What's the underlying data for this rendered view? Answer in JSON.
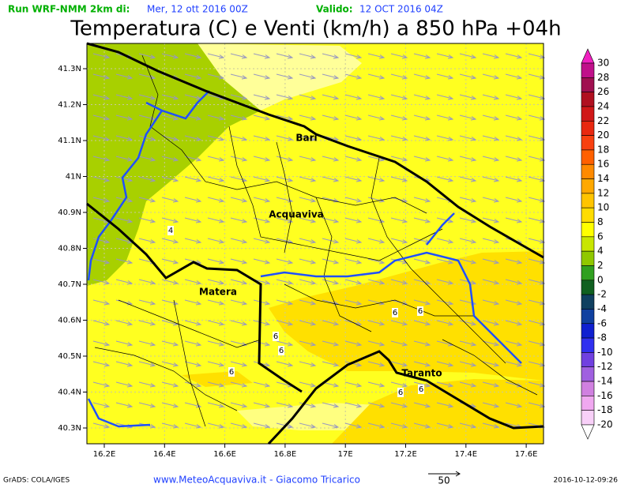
{
  "header": {
    "run_label": "Run WRF-NMM 2km di:",
    "run_date": "Mer, 12 ott 2016 00Z",
    "valid_label": "Valido:",
    "valid_date": "12 OCT 2016 04Z"
  },
  "title": "Temperatura (C) e Venti (km/h) a 850 hPa +04h",
  "map": {
    "x_labels": [
      "16.2E",
      "16.4E",
      "16.6E",
      "16.8E",
      "17E",
      "17.2E",
      "17.4E",
      "17.6E"
    ],
    "y_labels": [
      "41.3N",
      "41.2N",
      "41.1N",
      "41N",
      "40.9N",
      "40.8N",
      "40.7N",
      "40.6N",
      "40.5N",
      "40.4N",
      "40.3N"
    ],
    "cities": [
      "Bari",
      "Acquaviva",
      "Matera",
      "Taranto"
    ],
    "contour_labels": [
      "4",
      "6",
      "6",
      "6",
      "6",
      "6",
      "6",
      "6"
    ]
  },
  "colorbar": {
    "labels": [
      30,
      28,
      26,
      24,
      22,
      20,
      18,
      16,
      14,
      12,
      10,
      8,
      6,
      4,
      2,
      0,
      -2,
      -4,
      -6,
      -8,
      -10,
      -12,
      -14,
      -16,
      -18,
      -20
    ],
    "colors": [
      "#f020c0",
      "#c0108a",
      "#a01050",
      "#b01020",
      "#d01818",
      "#e82810",
      "#f84010",
      "#ff6000",
      "#ff8a00",
      "#ffa800",
      "#ffc400",
      "#ffdc00",
      "#ffff00",
      "#c8e600",
      "#90c800",
      "#30a020",
      "#106020",
      "#104060",
      "#1040a0",
      "#1020d0",
      "#3030f0",
      "#7040e0",
      "#a060e0",
      "#d080e0",
      "#f0a8f0",
      "#f8d0f8",
      "#ffffff"
    ]
  },
  "footer": {
    "software": "GrADS: COLA/IGES",
    "credit": "www.MeteoAcquaviva.it - Giacomo Tricarico",
    "scale": "50",
    "timestamp": "2016-10-12-09:26"
  }
}
